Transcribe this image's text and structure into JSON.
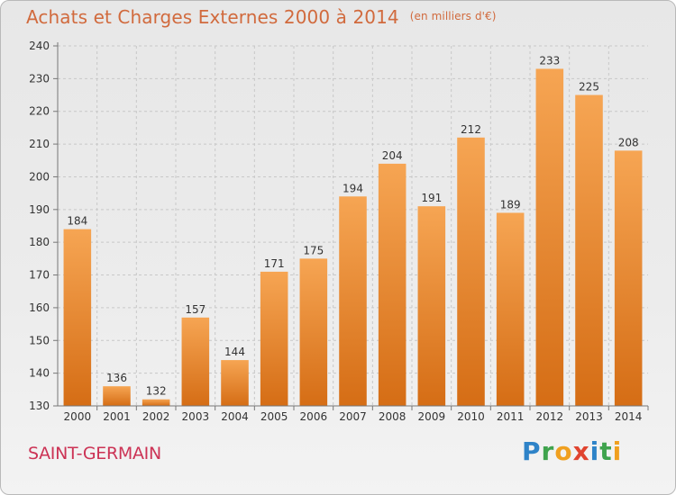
{
  "header": {
    "title": "Achats et Charges Externes 2000 à 2014",
    "unit": "(en milliers d'€)"
  },
  "footer": {
    "commune": "SAINT-GERMAIN",
    "logo_text": "Proxiti"
  },
  "colors": {
    "title": "#d16a3d",
    "commune": "#cc3355",
    "bar_light": "#f6a553",
    "bar_dark": "#d56d15",
    "grid": "#c8c8c8"
  },
  "chart_data": {
    "type": "bar",
    "title": "Achats et Charges Externes 2000 à 2014",
    "subtitle": "(en milliers d'€)",
    "xlabel": "",
    "ylabel": "",
    "categories": [
      "2000",
      "2001",
      "2002",
      "2003",
      "2004",
      "2005",
      "2006",
      "2007",
      "2008",
      "2009",
      "2010",
      "2011",
      "2012",
      "2013",
      "2014"
    ],
    "values": [
      184,
      136,
      132,
      157,
      144,
      171,
      175,
      194,
      204,
      191,
      212,
      189,
      233,
      225,
      208
    ],
    "ylim": [
      130,
      240
    ],
    "yticks": [
      130,
      140,
      150,
      160,
      170,
      180,
      190,
      200,
      210,
      220,
      230,
      240
    ],
    "grid": true,
    "legend": "none"
  }
}
